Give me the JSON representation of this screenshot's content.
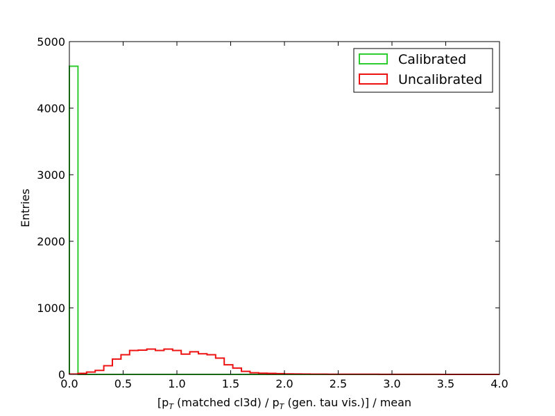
{
  "chart_data": {
    "type": "histogram-step",
    "xlabel": "[p_T (matched cl3d) / p_T (gen. tau vis.)] / mean",
    "xlabel_parts": {
      "open_bracket": "[p",
      "sub1": "T",
      "mid": " (matched cl3d) / p",
      "sub2": "T",
      "end": " (gen. tau vis.)] / mean"
    },
    "ylabel": "Entries",
    "xlim": [
      0,
      4.0
    ],
    "ylim": [
      0,
      5000
    ],
    "xticks": [
      0,
      0.5,
      1.0,
      1.5,
      2.0,
      2.5,
      3.0,
      3.5,
      4.0
    ],
    "xtick_labels": [
      "0.0",
      "0.5",
      "1.0",
      "1.5",
      "2.0",
      "2.5",
      "3.0",
      "3.5",
      "4.0"
    ],
    "yticks": [
      0,
      1000,
      2000,
      3000,
      4000,
      5000
    ],
    "ytick_labels": [
      "0",
      "1000",
      "2000",
      "3000",
      "4000",
      "5000"
    ],
    "bin_width": 0.08,
    "legend_position": "top-right",
    "series": [
      {
        "name": "Calibrated",
        "color": "#2ecc2e",
        "values": [
          4630,
          0,
          0,
          0,
          0,
          0,
          0,
          0,
          0,
          0,
          0,
          0,
          0,
          0,
          0,
          0,
          0,
          0,
          0,
          0,
          0,
          0,
          0,
          0,
          0,
          0,
          0,
          0,
          0,
          0,
          0,
          0,
          0,
          0,
          0,
          0,
          0,
          0,
          0,
          0,
          0,
          0,
          0,
          0,
          0,
          0,
          0,
          0,
          0,
          0
        ]
      },
      {
        "name": "Uncalibrated",
        "color": "#ee1111",
        "values": [
          5,
          15,
          35,
          60,
          130,
          230,
          295,
          360,
          365,
          380,
          360,
          380,
          360,
          305,
          340,
          310,
          295,
          245,
          145,
          95,
          45,
          25,
          18,
          15,
          12,
          8,
          6,
          5,
          4,
          4,
          3,
          3,
          2,
          2,
          2,
          2,
          1,
          1,
          1,
          1,
          1,
          1,
          1,
          0,
          0,
          0,
          0,
          0,
          0,
          0
        ]
      }
    ]
  }
}
